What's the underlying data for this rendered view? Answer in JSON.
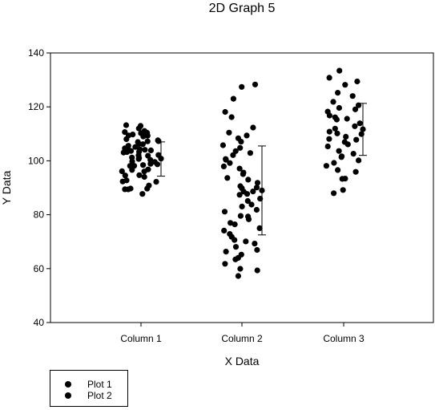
{
  "chart_data": {
    "type": "scatter",
    "title": "2D Graph 5",
    "xlabel": "X Data",
    "ylabel": "Y Data",
    "ylim": [
      40,
      140
    ],
    "yticks": [
      40,
      60,
      80,
      100,
      120,
      140
    ],
    "categories": [
      "Column 1",
      "Column 2",
      "Column 3"
    ],
    "grid": false,
    "legend_position": "bottom-left",
    "series": [
      {
        "name": "Plot 1",
        "marker": "filled-circle",
        "color": "#000000",
        "groups": [
          {
            "category": "Column 1",
            "values": [
              113,
              113,
              112,
              111,
              111,
              110,
              110,
              110,
              109,
              109,
              109,
              108,
              108,
              107,
              107,
              107,
              106,
              106,
              106,
              105,
              105,
              105,
              104,
              104,
              104,
              104,
              103,
              103,
              103,
              102,
              102,
              102,
              101,
              101,
              101,
              100,
              100,
              100,
              99,
              99,
              98,
              98,
              98,
              97,
              97,
              96,
              96,
              95,
              95,
              94,
              93,
              92,
              92,
              91,
              90,
              90,
              89,
              89,
              88
            ]
          },
          {
            "category": "Column 2",
            "values": [
              128,
              127,
              123,
              118,
              116,
              112,
              110,
              109,
              108,
              107,
              106,
              105,
              104,
              103,
              102,
              101,
              100,
              99,
              98,
              97,
              96,
              95,
              94,
              93,
              92,
              91,
              90,
              90,
              89,
              89,
              88,
              87,
              86,
              85,
              84,
              83,
              82,
              81,
              80,
              79,
              78,
              77,
              76,
              75,
              74,
              73,
              72,
              71,
              70,
              69,
              68,
              67,
              66,
              65,
              64,
              63,
              62,
              60,
              59,
              57
            ]
          },
          {
            "category": "Column 3",
            "values": [
              133,
              131,
              129,
              128,
              125,
              124,
              122,
              121,
              120,
              119,
              118,
              117,
              116,
              116,
              115,
              114,
              113,
              112,
              111,
              110,
              110,
              109,
              108,
              108,
              107,
              106,
              105,
              104,
              103,
              102,
              101,
              100,
              99,
              98,
              97,
              96,
              93,
              93,
              89,
              88
            ]
          }
        ]
      },
      {
        "name": "Plot 2",
        "marker": "error-bar-mean",
        "color": "#000000",
        "groups": [
          {
            "category": "Column 1",
            "mean": 100.8,
            "upper": 107,
            "lower": 94.3
          },
          {
            "category": "Column 2",
            "mean": 89,
            "upper": 105.5,
            "lower": 72.5
          },
          {
            "category": "Column 3",
            "mean": 111.7,
            "upper": 121.3,
            "lower": 102
          }
        ]
      }
    ]
  }
}
